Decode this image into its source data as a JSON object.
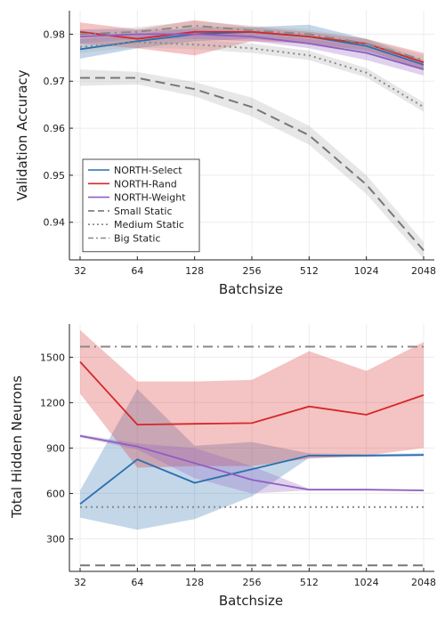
{
  "chart_data": [
    {
      "type": "line",
      "x": [
        "32",
        "64",
        "128",
        "256",
        "512",
        "1024",
        "2048"
      ],
      "xlabel": "Batchsize",
      "ylabel": "Validation Accuracy",
      "ylim": [
        0.932,
        0.985
      ],
      "yticks": [
        0.94,
        0.95,
        0.96,
        0.97,
        0.98
      ],
      "ytick_labels": [
        "0.94",
        "0.95",
        "0.96",
        "0.97",
        "0.98"
      ],
      "grid": true,
      "legend": "bottom-left",
      "series": [
        {
          "name": "NORTH-Select",
          "color": "#2a6fb0",
          "dash": "solid",
          "values": [
            0.9768,
            0.9785,
            0.98,
            0.9805,
            0.9795,
            0.9775,
            0.9735
          ],
          "lower": [
            0.9748,
            0.977,
            0.9785,
            0.979,
            0.978,
            0.976,
            0.9725
          ],
          "upper": [
            0.979,
            0.98,
            0.9815,
            0.9815,
            0.982,
            0.979,
            0.9745
          ]
        },
        {
          "name": "NORTH-Rand",
          "color": "#d62728",
          "dash": "solid",
          "values": [
            0.9805,
            0.979,
            0.9805,
            0.9805,
            0.9795,
            0.978,
            0.974
          ],
          "lower": [
            0.978,
            0.977,
            0.9755,
            0.9785,
            0.978,
            0.9765,
            0.9725
          ],
          "upper": [
            0.9825,
            0.981,
            0.983,
            0.9815,
            0.9805,
            0.979,
            0.976
          ]
        },
        {
          "name": "NORTH-Weight",
          "color": "#8e5fc0",
          "dash": "solid",
          "values": [
            0.9795,
            0.98,
            0.98,
            0.9795,
            0.978,
            0.976,
            0.9725
          ],
          "lower": [
            0.978,
            0.979,
            0.979,
            0.9785,
            0.977,
            0.9745,
            0.9712
          ],
          "upper": [
            0.981,
            0.981,
            0.981,
            0.9805,
            0.979,
            0.9775,
            0.974
          ]
        },
        {
          "name": "Small Static",
          "color": "#777777",
          "dash": "dash",
          "values": [
            0.9707,
            0.9707,
            0.9683,
            0.9645,
            0.9585,
            0.948,
            0.934
          ],
          "lower": [
            0.969,
            0.9693,
            0.9668,
            0.9625,
            0.9565,
            0.946,
            0.9322
          ],
          "upper": [
            0.9725,
            0.972,
            0.9698,
            0.9665,
            0.9605,
            0.95,
            0.9358
          ]
        },
        {
          "name": "Medium Static",
          "color": "#888888",
          "dash": "dot",
          "values": [
            0.9773,
            0.9783,
            0.9778,
            0.977,
            0.9755,
            0.9718,
            0.9645
          ],
          "lower": [
            0.976,
            0.9772,
            0.9768,
            0.976,
            0.9745,
            0.9708,
            0.9635
          ],
          "upper": [
            0.9786,
            0.9794,
            0.9788,
            0.978,
            0.9765,
            0.9728,
            0.9655
          ]
        },
        {
          "name": "Big Static",
          "color": "#888888",
          "dash": "dashdot",
          "values": [
            0.98,
            0.9805,
            0.9818,
            0.9808,
            0.98,
            0.978,
            0.9745
          ],
          "lower": [
            0.979,
            0.9795,
            0.9808,
            0.9798,
            0.979,
            0.977,
            0.9735
          ],
          "upper": [
            0.981,
            0.9815,
            0.9828,
            0.9818,
            0.981,
            0.979,
            0.9755
          ]
        }
      ]
    },
    {
      "type": "line",
      "x": [
        "32",
        "64",
        "128",
        "256",
        "512",
        "1024",
        "2048"
      ],
      "xlabel": "Batchsize",
      "ylabel": "Total Hidden Neurons",
      "ylim": [
        85,
        1720
      ],
      "yticks": [
        300,
        600,
        900,
        1200,
        1500
      ],
      "ytick_labels": [
        "300",
        "600",
        "900",
        "1200",
        "1500"
      ],
      "grid": true,
      "series": [
        {
          "name": "NORTH-Select",
          "color": "#2a6fb0",
          "dash": "solid",
          "values": [
            530,
            825,
            670,
            760,
            850,
            850,
            855
          ],
          "lower": [
            440,
            360,
            430,
            580,
            835,
            840,
            845
          ],
          "upper": [
            620,
            1290,
            915,
            940,
            865,
            860,
            865
          ]
        },
        {
          "name": "NORTH-Rand",
          "color": "#d62728",
          "dash": "solid",
          "values": [
            1470,
            1055,
            1060,
            1065,
            1175,
            1120,
            1250
          ],
          "lower": [
            1260,
            770,
            780,
            780,
            830,
            850,
            900
          ],
          "upper": [
            1680,
            1340,
            1340,
            1350,
            1540,
            1410,
            1600
          ]
        },
        {
          "name": "NORTH-Weight",
          "color": "#8e5fc0",
          "dash": "solid",
          "values": [
            980,
            910,
            800,
            690,
            625,
            625,
            620
          ],
          "lower": [
            970,
            890,
            700,
            600,
            620,
            620,
            616
          ],
          "upper": [
            990,
            930,
            900,
            780,
            630,
            630,
            624
          ]
        },
        {
          "name": "Small Static",
          "color": "#777777",
          "dash": "dash",
          "values": [
            125,
            125,
            125,
            125,
            125,
            125,
            125
          ]
        },
        {
          "name": "Medium Static",
          "color": "#888888",
          "dash": "dot",
          "values": [
            510,
            510,
            510,
            510,
            510,
            510,
            510
          ]
        },
        {
          "name": "Big Static",
          "color": "#888888",
          "dash": "dashdot",
          "values": [
            1570,
            1570,
            1570,
            1570,
            1570,
            1570,
            1570
          ]
        }
      ]
    }
  ]
}
